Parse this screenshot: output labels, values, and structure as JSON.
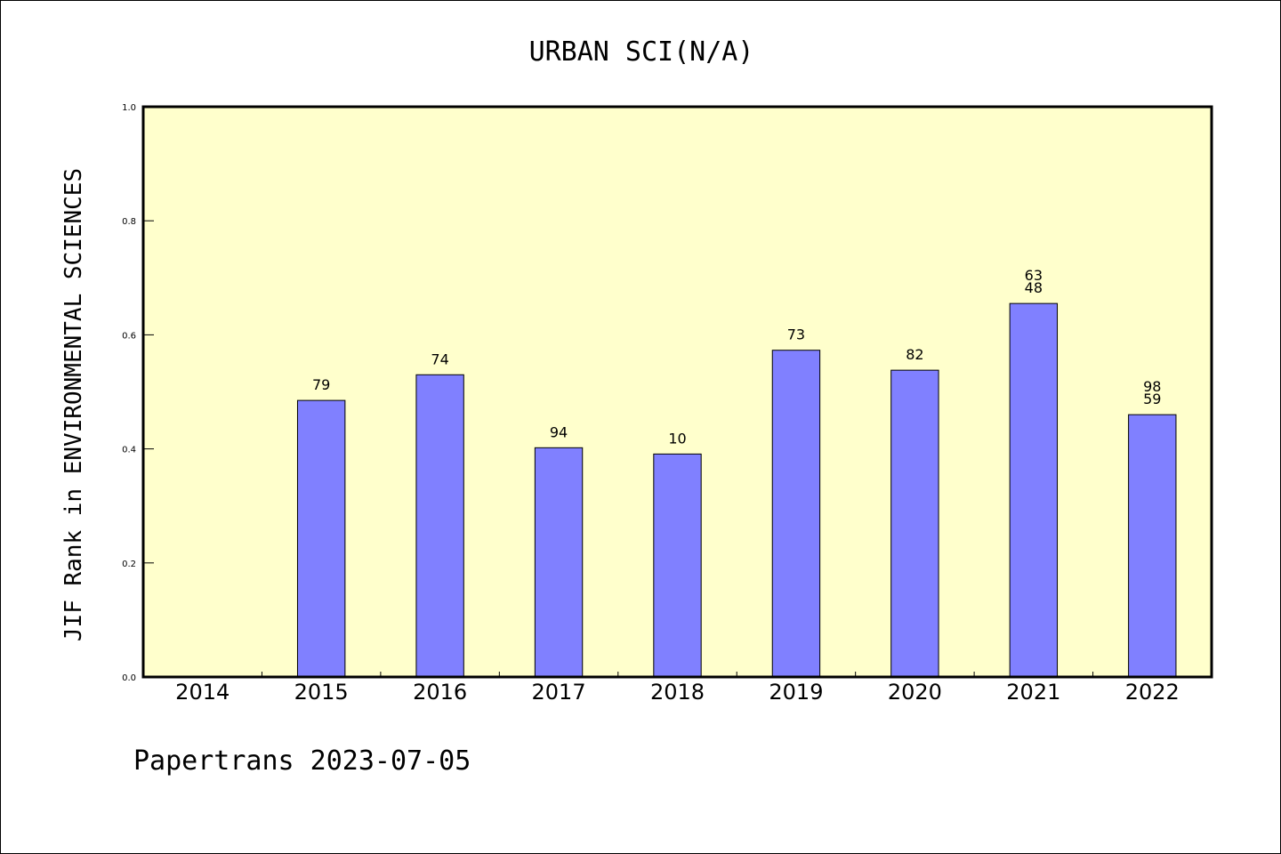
{
  "footer": "Papertrans 2023-07-05",
  "colors": {
    "plot_background": "#ffffcc",
    "bar_fill": "#8080ff",
    "bar_stroke": "#000000"
  },
  "chart_data": {
    "type": "bar",
    "title": "URBAN SCI(N/A)",
    "xlabel": "",
    "ylabel": "JIF Rank in ENVIRONMENTAL SCIENCES",
    "ylim": [
      0.0,
      1.0
    ],
    "yticks": [
      "0.0",
      "0.2",
      "0.4",
      "0.6",
      "0.8",
      "1.0"
    ],
    "grid": false,
    "categories": [
      "2014",
      "2015",
      "2016",
      "2017",
      "2018",
      "2019",
      "2020",
      "2021",
      "2022"
    ],
    "values": [
      null,
      0.485,
      0.53,
      0.402,
      0.391,
      0.573,
      0.538,
      0.655,
      0.46
    ],
    "annotations": [
      [],
      [
        "79"
      ],
      [
        "74"
      ],
      [
        "94"
      ],
      [
        "10"
      ],
      [
        "73"
      ],
      [
        "82"
      ],
      [
        "63",
        "48"
      ],
      [
        "98",
        "59"
      ]
    ]
  }
}
